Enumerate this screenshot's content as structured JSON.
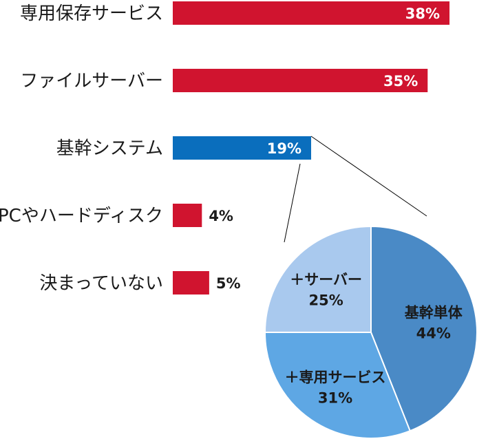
{
  "chart_data": [
    {
      "type": "bar",
      "orientation": "horizontal",
      "categories": [
        "専用保存サービス",
        "ファイルサーバー",
        "基幹システム",
        "PCやハードディスク",
        "決まっていない"
      ],
      "values": [
        38,
        35,
        19,
        4,
        5
      ],
      "value_labels": [
        "38%",
        "35%",
        "19%",
        "4%",
        "5%"
      ],
      "colors": [
        "#d0142f",
        "#d0142f",
        "#0a6ebd",
        "#d0142f",
        "#d0142f"
      ],
      "xlim": [
        0,
        40
      ],
      "grid": false,
      "title": "",
      "xlabel": "",
      "ylabel": ""
    },
    {
      "type": "pie",
      "categories": [
        "基幹単体",
        "＋専用サービス",
        "＋サーバー"
      ],
      "values": [
        44,
        31,
        25
      ],
      "value_labels": [
        "44%",
        "31%",
        "25%"
      ],
      "colors": [
        "#4a8ac6",
        "#5ea7e4",
        "#a9c9ee"
      ],
      "start": "12 o'clock, clockwise",
      "title": ""
    }
  ]
}
